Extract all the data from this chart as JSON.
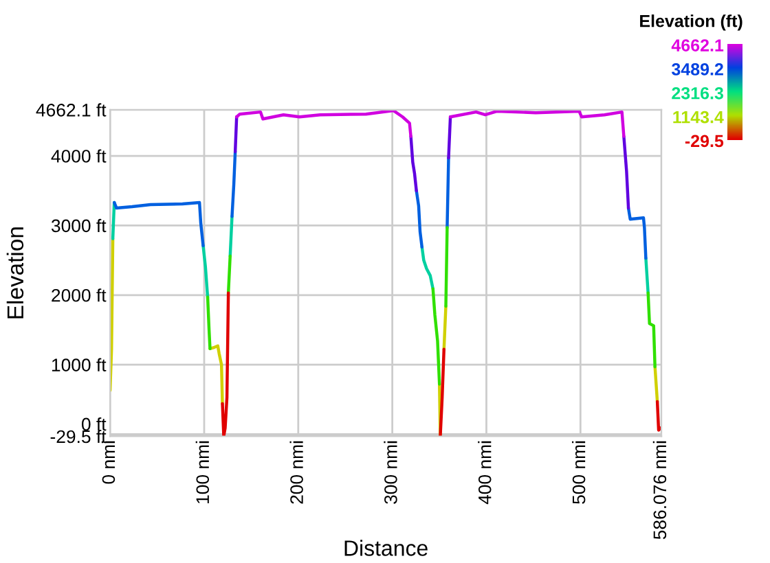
{
  "chart_data": {
    "type": "line",
    "xlabel": "Distance",
    "ylabel": "Elevation",
    "clabel": "Elevation (ft)",
    "clim": [
      -29.5,
      4662.1
    ],
    "cticks": [
      4662.1,
      3489.2,
      2316.3,
      1143.4,
      -29.5
    ],
    "colors": [
      "#e000e0",
      "#0040e0",
      "#00e080",
      "#b0e000",
      "#e00000"
    ],
    "xlim": [
      0,
      586.076
    ],
    "xticks": [
      {
        "value": 0,
        "label": "0 nmi"
      },
      {
        "value": 100,
        "label": "100 nmi"
      },
      {
        "value": 200,
        "label": "200 nmi"
      },
      {
        "value": 300,
        "label": "300 nmi"
      },
      {
        "value": 400,
        "label": "400 nmi"
      },
      {
        "value": 500,
        "label": "500 nmi"
      },
      {
        "value": 586.076,
        "label": "586.076 nmi"
      }
    ],
    "ylim": [
      -29.5,
      4662.1
    ],
    "yticks": [
      {
        "value": -29.5,
        "label": "-29.5 ft"
      },
      {
        "value": 0,
        "label": "0 ft"
      },
      {
        "value": 1000,
        "label": "1000 ft"
      },
      {
        "value": 2000,
        "label": "2000 ft"
      },
      {
        "value": 3000,
        "label": "3000 ft"
      },
      {
        "value": 4000,
        "label": "4000 ft"
      },
      {
        "value": 4662.1,
        "label": "4662.1 ft"
      }
    ],
    "grid": true,
    "series": [
      {
        "color": "#d0d000",
        "x": [
          0,
          1.5,
          2.9,
          null,
          106.2,
          111,
          114.5,
          115.9,
          118.4,
          119.4,
          null,
          350.1,
          351,
          null,
          354.9,
          356.9,
          null,
          579.2,
          581.7
        ],
        "values": [
          630,
          1220,
          2810,
          null,
          1230,
          1250,
          1270,
          1160,
          1000,
          440,
          null,
          720,
          -29.5,
          null,
          1220,
          1840,
          null,
          970,
          470
        ]
      },
      {
        "color": "#00d0a0",
        "x": [
          2.9,
          4.4,
          null,
          98.9,
          101.3,
          103.7,
          null,
          127.6,
          129.6,
          null,
          331.5,
          333.4,
          336.4,
          340.3,
          343.2,
          null,
          569.5,
          571.9
        ],
        "values": [
          2810,
          3330,
          null,
          2710,
          2410,
          1970,
          null,
          2560,
          3130,
          null,
          2690,
          2500,
          2380,
          2280,
          2090,
          null,
          2530,
          2030
        ]
      },
      {
        "color": "#0060e0",
        "x": [
          4.4,
          6.8,
          23.4,
          42.9,
          76.9,
          95,
          96.4,
          98.9,
          null,
          129.6,
          131.5,
          133,
          null,
          325.6,
          328,
          329.5,
          331.5,
          null,
          358.3,
          359.8,
          null,
          551,
          552.9,
          567,
          568,
          569.5
        ],
        "values": [
          3330,
          3250,
          3270,
          3300,
          3310,
          3330,
          3030,
          2710,
          null,
          3130,
          3590,
          4060,
          null,
          3500,
          3280,
          2910,
          2690,
          null,
          2970,
          3970,
          null,
          3250,
          3090,
          3110,
          2970,
          2530
        ]
      },
      {
        "color": "#30e000",
        "x": [
          103.7,
          105.2,
          106.2,
          null,
          125.7,
          127.6,
          null,
          343.2,
          345.2,
          348.1,
          350.1,
          null,
          356.9,
          358.3,
          null,
          571.9,
          573.4,
          577.8,
          579.2
        ],
        "values": [
          1970,
          1500,
          1230,
          null,
          2030,
          2560,
          null,
          2090,
          1720,
          1340,
          720,
          null,
          1840,
          2970,
          null,
          2030,
          1590,
          1560,
          970
        ]
      },
      {
        "color": "#e00000",
        "x": [
          119.4,
          120.8,
          122.3,
          124.2,
          125.7,
          null,
          351,
          353,
          354.9,
          null,
          581.7,
          583.1,
          585.1
        ],
        "values": [
          440,
          -29.5,
          90,
          530,
          2030,
          null,
          -29.5,
          530,
          1220,
          null,
          470,
          60,
          90
        ]
      },
      {
        "color": "#6000e0",
        "x": [
          133,
          134.5,
          null,
          319.7,
          321.7,
          323.6,
          325.6,
          null,
          359.8,
          361.7,
          null,
          546.1,
          549,
          551
        ],
        "values": [
          4060,
          4560,
          null,
          4280,
          3910,
          3750,
          3500,
          null,
          3970,
          4560,
          null,
          4280,
          3780,
          3250
        ]
      },
      {
        "color": "#d000e0",
        "x": [
          134.5,
          137.9,
          159.9,
          162.4,
          184.3,
          201.4,
          223.3,
          272,
          301.3,
          310.9,
          318.3,
          319.7,
          null,
          361.7,
          389,
          398.8,
          411,
          452.4,
          498.7,
          501.2,
          525.6,
          544.1,
          546.1
        ],
        "values": [
          4560,
          4600,
          4630,
          4530,
          4590,
          4560,
          4590,
          4600,
          4650,
          4560,
          4470,
          4280,
          null,
          4560,
          4630,
          4590,
          4640,
          4620,
          4640,
          4560,
          4590,
          4630,
          4280
        ]
      }
    ]
  }
}
